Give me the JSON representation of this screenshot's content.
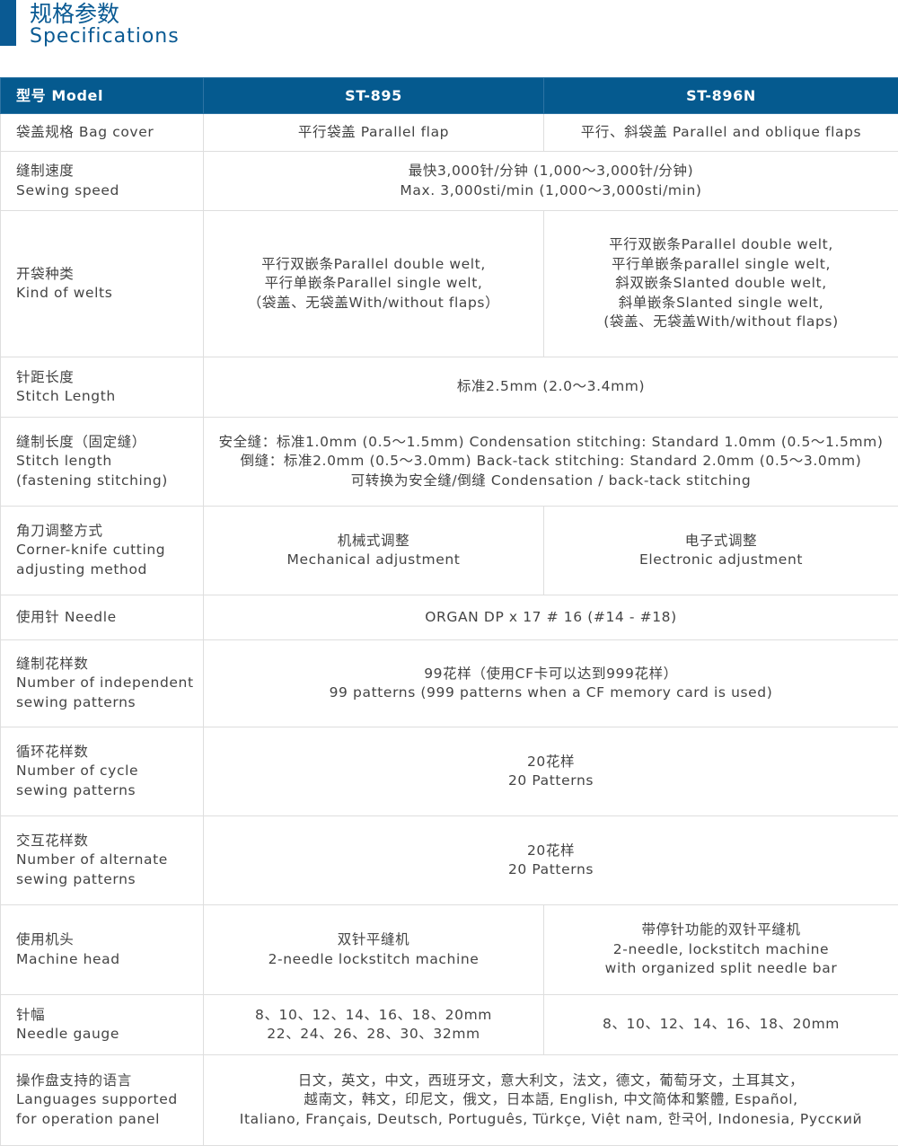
{
  "title": {
    "cn": "规格参数",
    "en": "Specifications"
  },
  "colors": {
    "accent": "#0a5a93",
    "header_bg": "#055a8f",
    "text": "#444444"
  },
  "header": {
    "label": "型号 Model",
    "models": [
      "ST-895",
      "ST-896N"
    ]
  },
  "rows": [
    {
      "label": [
        "袋盖规格 Bag cover"
      ],
      "a": [
        "平行袋盖 Parallel flap"
      ],
      "b": [
        "平行、斜袋盖 Parallel and oblique flaps"
      ]
    },
    {
      "label": [
        "缝制速度",
        "Sewing speed"
      ],
      "both": [
        "最快3,000针/分钟 (1,000～3,000针/分钟)",
        "Max. 3,000sti/min (1,000～3,000sti/min)"
      ]
    },
    {
      "label": [
        "开袋种类",
        "Kind of welts"
      ],
      "a": [
        "平行双嵌条Parallel double welt,",
        "平行单嵌条Parallel single welt,",
        "（袋盖、无袋盖With/without flaps）"
      ],
      "b": [
        "平行双嵌条Parallel double welt,",
        "平行单嵌条parallel single welt,",
        "斜双嵌条Slanted double welt,",
        "斜单嵌条Slanted single welt,",
        "(袋盖、无袋盖With/without flaps)"
      ]
    },
    {
      "label": [
        "针距长度",
        "Stitch Length"
      ],
      "both": [
        "标准2.5mm (2.0～3.4mm)"
      ]
    },
    {
      "label": [
        "缝制长度（固定缝）",
        "Stitch length",
        "(fastening stitching)"
      ],
      "both": [
        "安全缝：标准1.0mm (0.5～1.5mm) Condensation stitching: Standard 1.0mm (0.5～1.5mm)",
        "倒缝：标准2.0mm (0.5～3.0mm) Back-tack stitching: Standard 2.0mm (0.5～3.0mm)",
        "可转换为安全缝/倒缝 Condensation / back-tack stitching"
      ]
    },
    {
      "label": [
        "角刀调整方式",
        "Corner-knife cutting",
        "adjusting method"
      ],
      "a": [
        "机械式调整",
        "Mechanical adjustment"
      ],
      "b": [
        "电子式调整",
        "Electronic adjustment"
      ]
    },
    {
      "label": [
        "使用针 Needle"
      ],
      "both": [
        "ORGAN DP x 17 # 16 (#14 - #18)"
      ]
    },
    {
      "label": [
        "缝制花样数",
        "Number of independent",
        "sewing patterns"
      ],
      "both": [
        "99花样（使用CF卡可以达到999花样）",
        "99 patterns (999 patterns when a CF memory card is used)"
      ]
    },
    {
      "label": [
        "循环花样数",
        "Number of cycle",
        "sewing patterns"
      ],
      "both": [
        "20花样",
        "20 Patterns"
      ]
    },
    {
      "label": [
        "交互花样数",
        "Number of alternate",
        "sewing patterns"
      ],
      "both": [
        "20花样",
        "20 Patterns"
      ]
    },
    {
      "label": [
        "使用机头",
        "Machine head"
      ],
      "a": [
        "双针平缝机",
        "2-needle lockstitch machine"
      ],
      "b": [
        "带停针功能的双针平缝机",
        "2-needle, lockstitch machine",
        "with organized split needle bar"
      ]
    },
    {
      "label": [
        "针幅",
        "Needle gauge"
      ],
      "a": [
        "8、10、12、14、16、18、20mm",
        "22、24、26、28、30、32mm"
      ],
      "b": [
        "8、10、12、14、16、18、20mm"
      ]
    },
    {
      "label": [
        "操作盘支持的语言",
        "Languages supported",
        "for operation panel"
      ],
      "both": [
        "日文，英文，中文，西班牙文，意大利文，法文，德文，葡萄牙文，土耳其文，",
        "越南文，韩文，印尼文，俄文，日本語, English, 中文简体和繁體, Español,",
        "Italiano, Français, Deutsch, Português, Türkçe, Việt nam, 한국어, Indonesia, Русский"
      ]
    }
  ]
}
